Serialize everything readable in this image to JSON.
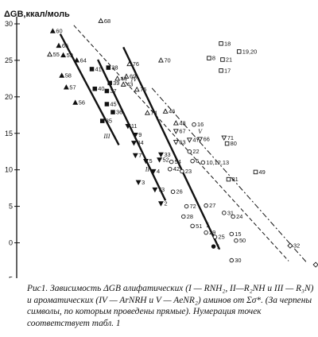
{
  "chart_data": {
    "type": "scatter",
    "ylabel": "ΔGB,ккал/моль",
    "ylim": [
      -6,
      31
    ],
    "xlim": [
      0,
      100
    ],
    "yticks": [
      "30",
      "25",
      "20",
      "15",
      "10",
      "5",
      "0",
      "-5"
    ],
    "grid": false,
    "x_axis_shown": false,
    "note": "",
    "lines": [
      {
        "label": "III",
        "x1": 14.5,
        "y1": 28.6,
        "x2": 34.0,
        "y2": 13.4
      },
      {
        "label": "II",
        "x1": 27.0,
        "y1": 25.1,
        "x2": 49.5,
        "y2": 5.8
      },
      {
        "label": "I",
        "x1": 35.5,
        "y1": 26.8,
        "x2": 67.5,
        "y2": -0.9
      },
      {
        "label": "IV",
        "x1": 19.0,
        "y1": 29.8,
        "x2": 90.5,
        "y2": -2.5
      },
      {
        "label": "V",
        "x1": 45.0,
        "y1": 21.2,
        "x2": 96.5,
        "y2": -2.7
      }
    ],
    "line_labels": [
      {
        "text": "III",
        "x": 30.0,
        "y": 14.3
      },
      {
        "text": "II",
        "x": 43.5,
        "y": 9.8
      },
      {
        "text": "I",
        "x": 63.5,
        "y": 2.1
      },
      {
        "text": "IV",
        "x": 39.0,
        "y": 22.1
      },
      {
        "text": "V",
        "x": 61.0,
        "y": 15.0
      }
    ],
    "points": [
      {
        "label": "60",
        "x": 12.0,
        "y": 29.0,
        "marker": "filled-triangle"
      },
      {
        "label": "68",
        "x": 28.0,
        "y": 30.4,
        "marker": "open-triangle"
      },
      {
        "label": "65",
        "x": 14.0,
        "y": 27.0,
        "marker": "filled-triangle"
      },
      {
        "label": "55",
        "x": 11.0,
        "y": 25.8,
        "marker": "open-triangle"
      },
      {
        "label": "59",
        "x": 15.5,
        "y": 25.7,
        "marker": "filled-triangle"
      },
      {
        "label": "64",
        "x": 20.0,
        "y": 25.0,
        "marker": "filled-triangle"
      },
      {
        "label": "58",
        "x": 15.0,
        "y": 22.9,
        "marker": "filled-triangle"
      },
      {
        "label": "57",
        "x": 16.5,
        "y": 21.3,
        "marker": "filled-triangle"
      },
      {
        "label": "56",
        "x": 19.5,
        "y": 19.2,
        "marker": "filled-triangle"
      },
      {
        "label": "41",
        "x": 25.0,
        "y": 23.8,
        "marker": "filled-square"
      },
      {
        "label": "38",
        "x": 30.5,
        "y": 24.0,
        "marker": "filled-square"
      },
      {
        "label": "39",
        "x": 31.0,
        "y": 21.9,
        "marker": "filled-square"
      },
      {
        "label": "40",
        "x": 26.0,
        "y": 21.1,
        "marker": "filled-square"
      },
      {
        "label": "37",
        "x": 30.0,
        "y": 20.8,
        "marker": "filled-square"
      },
      {
        "label": "45",
        "x": 30.0,
        "y": 19.0,
        "marker": "filled-square"
      },
      {
        "label": "36",
        "x": 32.0,
        "y": 17.9,
        "marker": "filled-square"
      },
      {
        "label": "35",
        "x": 28.5,
        "y": 16.7,
        "marker": "filled-square"
      },
      {
        "label": "76",
        "x": 37.5,
        "y": 24.5,
        "marker": "open-triangle"
      },
      {
        "label": "70",
        "x": 48.0,
        "y": 25.0,
        "marker": "open-triangle"
      },
      {
        "label": "69",
        "x": 36.5,
        "y": 22.8,
        "marker": "open-triangle"
      },
      {
        "label": "44",
        "x": 33.5,
        "y": 22.5,
        "marker": "open-triangle"
      },
      {
        "label": "43",
        "x": 35.5,
        "y": 21.7,
        "marker": "open-triangle"
      },
      {
        "label": "75",
        "x": 40.0,
        "y": 21.0,
        "marker": "open-triangle"
      },
      {
        "label": "74",
        "x": 43.5,
        "y": 17.8,
        "marker": "open-triangle"
      },
      {
        "label": "46",
        "x": 49.5,
        "y": 18.0,
        "marker": "open-triangle"
      },
      {
        "label": "48",
        "x": 53.0,
        "y": 16.4,
        "marker": "open-triangle"
      },
      {
        "label": "16",
        "x": 59.0,
        "y": 16.2,
        "marker": "open-circle"
      },
      {
        "label": "18",
        "x": 68.0,
        "y": 27.3,
        "marker": "open-square"
      },
      {
        "label": "19,20",
        "x": 74.0,
        "y": 26.2,
        "marker": "open-square"
      },
      {
        "label": "8",
        "x": 64.0,
        "y": 25.3,
        "marker": "open-square"
      },
      {
        "label": "21",
        "x": 68.5,
        "y": 25.1,
        "marker": "open-square"
      },
      {
        "label": "17",
        "x": 68.0,
        "y": 23.6,
        "marker": "open-square"
      },
      {
        "label": "11",
        "x": 37.0,
        "y": 16.0,
        "marker": "filled-triangle-down"
      },
      {
        "label": "9",
        "x": 39.5,
        "y": 14.8,
        "marker": "filled-triangle-down"
      },
      {
        "label": "34",
        "x": 39.0,
        "y": 13.7,
        "marker": "filled-triangle-down"
      },
      {
        "label": "7",
        "x": 39.5,
        "y": 12.0,
        "marker": "filled-triangle-down"
      },
      {
        "label": "5",
        "x": 43.0,
        "y": 11.2,
        "marker": "filled-triangle-down"
      },
      {
        "label": "52",
        "x": 47.5,
        "y": 11.4,
        "marker": "filled-triangle-down"
      },
      {
        "label": "4",
        "x": 45.5,
        "y": 9.8,
        "marker": "filled-triangle-down"
      },
      {
        "label": "3",
        "x": 40.5,
        "y": 8.3,
        "marker": "filled-triangle-down"
      },
      {
        "label": "73",
        "x": 46.0,
        "y": 7.3,
        "marker": "filled-triangle-down"
      },
      {
        "label": "2",
        "x": 48.0,
        "y": 5.4,
        "marker": "filled-triangle-down"
      },
      {
        "label": "1",
        "x": 65.5,
        "y": -0.5,
        "marker": "filled-circle"
      },
      {
        "label": "33",
        "x": 48.0,
        "y": 12.1,
        "marker": "filled-triangle-down"
      },
      {
        "label": "54",
        "x": 51.5,
        "y": 11.1,
        "marker": "open-circle"
      },
      {
        "label": "67",
        "x": 53.0,
        "y": 15.3,
        "marker": "open-triangle-down"
      },
      {
        "label": "63",
        "x": 53.0,
        "y": 13.8,
        "marker": "open-triangle-down"
      },
      {
        "label": "47",
        "x": 57.5,
        "y": 14.1,
        "marker": "open-triangle-down"
      },
      {
        "label": "66",
        "x": 61.0,
        "y": 14.2,
        "marker": "open-triangle-down"
      },
      {
        "label": "71",
        "x": 69.0,
        "y": 14.4,
        "marker": "open-triangle-down"
      },
      {
        "label": "22",
        "x": 57.5,
        "y": 12.5,
        "marker": "open-circle"
      },
      {
        "label": "6",
        "x": 58.5,
        "y": 11.2,
        "marker": "open-circle"
      },
      {
        "label": "10,12,13",
        "x": 62.0,
        "y": 11.0,
        "marker": "open-circle"
      },
      {
        "label": "42",
        "x": 51.0,
        "y": 10.1,
        "marker": "open-circle"
      },
      {
        "label": "23",
        "x": 55.0,
        "y": 9.8,
        "marker": "open-circle"
      },
      {
        "label": "26",
        "x": 52.0,
        "y": 7.0,
        "marker": "open-circle"
      },
      {
        "label": "27",
        "x": 63.0,
        "y": 5.1,
        "marker": "open-circle"
      },
      {
        "label": "72",
        "x": 56.5,
        "y": 5.0,
        "marker": "open-circle"
      },
      {
        "label": "28",
        "x": 55.5,
        "y": 3.6,
        "marker": "open-circle"
      },
      {
        "label": "31",
        "x": 69.0,
        "y": 4.1,
        "marker": "open-circle"
      },
      {
        "label": "24",
        "x": 72.0,
        "y": 3.6,
        "marker": "open-circle"
      },
      {
        "label": "51",
        "x": 58.5,
        "y": 2.3,
        "marker": "open-circle"
      },
      {
        "label": "80",
        "x": 70.0,
        "y": 13.6,
        "marker": "open-square"
      },
      {
        "label": "81",
        "x": 70.5,
        "y": 8.7,
        "marker": "open-square"
      },
      {
        "label": "49",
        "x": 79.5,
        "y": 9.7,
        "marker": "open-square"
      },
      {
        "label": "29",
        "x": 63.0,
        "y": 1.4,
        "marker": "open-circle"
      },
      {
        "label": "15",
        "x": 71.5,
        "y": 1.2,
        "marker": "open-circle"
      },
      {
        "label": "25",
        "x": 66.0,
        "y": 0.8,
        "marker": "open-circle"
      },
      {
        "label": "50",
        "x": 73.0,
        "y": 0.3,
        "marker": "open-circle"
      },
      {
        "label": "30",
        "x": 71.5,
        "y": -2.4,
        "marker": "open-circle"
      },
      {
        "label": "32",
        "x": 91.0,
        "y": -0.4,
        "marker": "open-diamond"
      },
      {
        "label": "83",
        "x": 99.5,
        "y": -3.0,
        "marker": "open-diamond"
      }
    ]
  },
  "caption": {
    "text": "Рис1. Зависимость ΔGB алифатических  (I — RNH₂, II—R₂NH и III  — R₃N) и ароматических (IV — ArNRH и V — AeNR₂) аминов от Σσ*. (За черneны символы, по которым проведены прямые). Нумерация точек соответствует табл. 1"
  },
  "colors": {
    "ink": "#111111",
    "background": "#ffffff"
  }
}
